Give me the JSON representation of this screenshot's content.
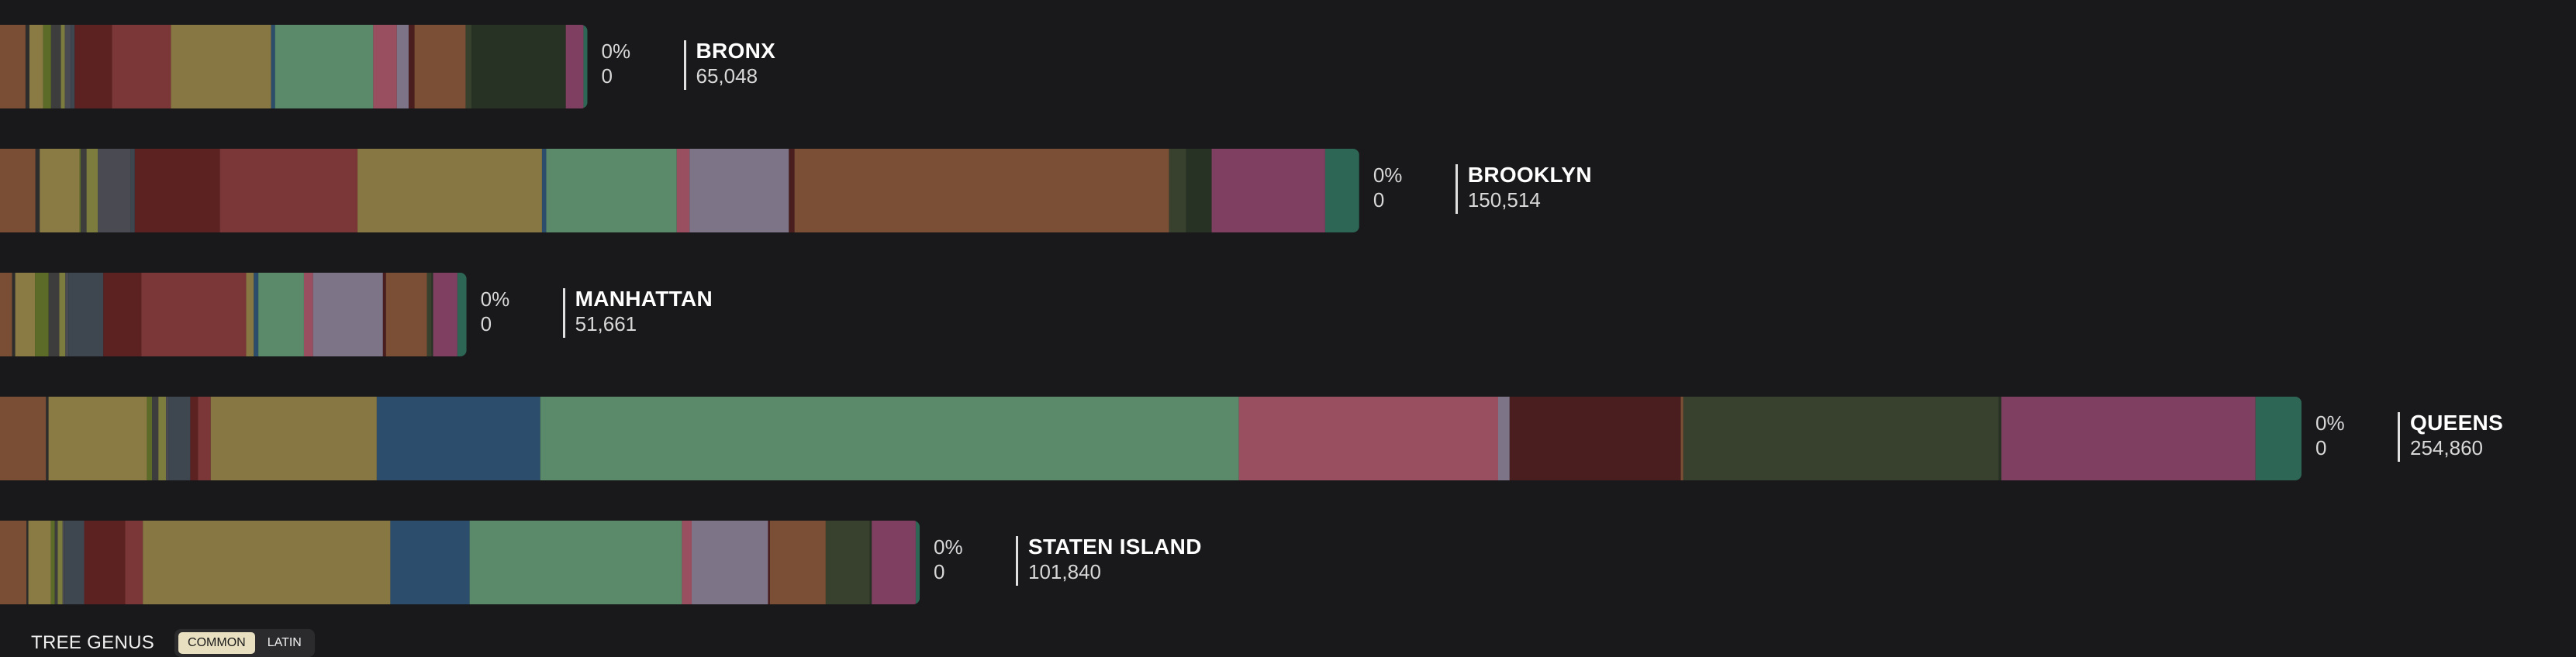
{
  "colors": {
    "background": "#19191b",
    "segments": [
      "#7a4e35",
      "#2d2d2d",
      "#8a7a43",
      "#5c6b28",
      "#3d3d3d",
      "#7d7c3f",
      "#4a4a52",
      "#3e4650",
      "#5c2222",
      "#7b3737",
      "#877843",
      "#2c4d6b",
      "#5a8a6a",
      "#9a4f60",
      "#7e7488",
      "#4a1e1e",
      "#7a4f35",
      "#38402e",
      "#283224",
      "#7e3f60",
      "#2d6654"
    ]
  },
  "chart_data": {
    "type": "bar",
    "orientation": "horizontal",
    "stacked": true,
    "categories": [
      "BRONX",
      "BROOKLYN",
      "MANHATTAN",
      "QUEENS",
      "STATEN ISLAND"
    ],
    "totals": [
      65048,
      150514,
      51661,
      254860,
      101840
    ],
    "highlight_pct": [
      "0%",
      "0%",
      "0%",
      "0%",
      "0%"
    ],
    "highlight_count": [
      "0",
      "0",
      "0",
      "0",
      "0"
    ],
    "total_labels": [
      "65,048",
      "150,514",
      "51,661",
      "254,860",
      "101,840"
    ],
    "segment_values": [
      [
        1300,
        200,
        700,
        400,
        500,
        200,
        300,
        200,
        1900,
        3000,
        5100,
        200,
        5000,
        1200,
        600,
        300,
        2600,
        300,
        4800,
        900,
        200
      ],
      [
        2500,
        300,
        2800,
        100,
        400,
        800,
        2300,
        300,
        6000,
        9700,
        13000,
        300,
        9200,
        900,
        7000,
        400,
        26400,
        1200,
        1800,
        8000,
        2400
      ],
      [
        800,
        200,
        1300,
        900,
        700,
        400,
        200,
        2300,
        2500,
        6900,
        500,
        300,
        3000,
        600,
        4600,
        200,
        2700,
        300,
        100,
        1600,
        600
      ],
      [
        3600,
        200,
        7700,
        400,
        500,
        600,
        200,
        1700,
        600,
        1000,
        13000,
        12800,
        54700,
        20300,
        900,
        13400,
        200,
        24700,
        200,
        19900,
        3600
      ],
      [
        2700,
        200,
        2300,
        400,
        300,
        500,
        200,
        2000,
        4200,
        1800,
        25300,
        8100,
        21700,
        1000,
        7800,
        200,
        5700,
        4500,
        200,
        4500,
        400
      ]
    ]
  },
  "legend": {
    "title": "TREE GENUS",
    "toggle": {
      "common": "COMMON",
      "latin": "LATIN",
      "selected": "common"
    }
  }
}
